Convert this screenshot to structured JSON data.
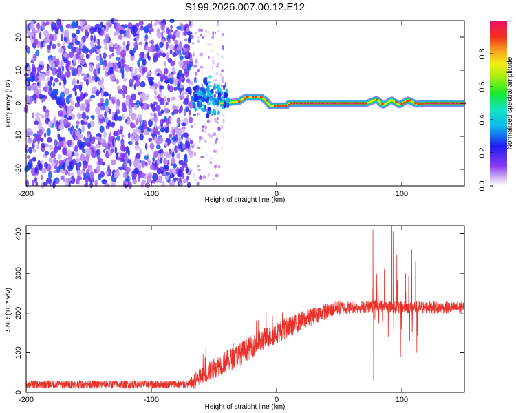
{
  "title": "S199.2026.007.00.12.E12",
  "chart_data": [
    {
      "type": "heatmap",
      "name": "spectrogram",
      "title": "S199.2026.007.00.12.E12",
      "xlabel": "Height of straight line (km)",
      "ylabel": "Frequency (Hz)",
      "xlim": [
        -200,
        150
      ],
      "ylim": [
        -25,
        25
      ],
      "xticks": [
        -200,
        -100,
        0,
        100
      ],
      "yticks": [
        -20,
        -10,
        0,
        10,
        20
      ],
      "colorbar": {
        "label": "Normalized spectral amplitude",
        "range": [
          0.0,
          1.0
        ],
        "ticks": [
          0.0,
          0.2,
          0.4,
          0.6,
          0.8
        ],
        "tick_labels": [
          "0.0",
          "0.2",
          "0.4",
          "0.6",
          "0.8"
        ]
      },
      "regions": [
        {
          "x_range": [
            -200,
            -68
          ],
          "description": "dense broadband noise",
          "amplitude": [
            0.05,
            0.3
          ]
        },
        {
          "x_range": [
            -68,
            -42
          ],
          "description": "sparse noise",
          "amplitude": [
            0.02,
            0.15
          ]
        },
        {
          "x_range": [
            -66,
            -40
          ],
          "freq_hz": 2.5,
          "description": "scattered burst",
          "amplitude": [
            0.2,
            0.5
          ]
        }
      ],
      "ridge": [
        {
          "x": -45,
          "freq": 0.0
        },
        {
          "x": -30,
          "freq": 0.5
        },
        {
          "x": -25,
          "freq": 1.8
        },
        {
          "x": -12,
          "freq": 1.8
        },
        {
          "x": -8,
          "freq": 0.6
        },
        {
          "x": -5,
          "freq": -0.8
        },
        {
          "x": 8,
          "freq": -0.8
        },
        {
          "x": 10,
          "freq": 0.0
        },
        {
          "x": 72,
          "freq": 0.0
        },
        {
          "x": 80,
          "freq": 1.2
        },
        {
          "x": 85,
          "freq": -0.6
        },
        {
          "x": 92,
          "freq": 1.0
        },
        {
          "x": 98,
          "freq": -0.5
        },
        {
          "x": 105,
          "freq": 1.0
        },
        {
          "x": 112,
          "freq": -0.3
        },
        {
          "x": 118,
          "freq": 0.0
        },
        {
          "x": 150,
          "freq": 0.0
        }
      ]
    },
    {
      "type": "line",
      "name": "snr",
      "xlabel": "Height of straight line (km)",
      "ylabel": "SNR (10 * v/v)",
      "xlim": [
        -200,
        150
      ],
      "ylim": [
        0,
        420
      ],
      "xticks": [
        -200,
        -100,
        0,
        100
      ],
      "yticks": [
        0,
        100,
        200,
        300,
        400
      ],
      "series": [
        {
          "name": "SNR",
          "color": "#e8312a",
          "baseline": [
            [
              -200,
              20
            ],
            [
              -70,
              20
            ],
            [
              -60,
              40
            ],
            [
              -45,
              70
            ],
            [
              -30,
              95
            ],
            [
              -10,
              135
            ],
            [
              10,
              165
            ],
            [
              20,
              180
            ],
            [
              35,
              200
            ],
            [
              50,
              213
            ],
            [
              80,
              218
            ],
            [
              100,
              215
            ],
            [
              150,
              213
            ]
          ],
          "noise": [
            [
              -200,
              10
            ],
            [
              -70,
              10
            ],
            [
              -65,
              22
            ],
            [
              -40,
              28
            ],
            [
              0,
              28
            ],
            [
              30,
              22
            ],
            [
              60,
              15
            ],
            [
              150,
              15
            ]
          ],
          "spikes": [
            {
              "x": 77,
              "value": 410
            },
            {
              "x": 77.5,
              "value": 30
            },
            {
              "x": 92,
              "value": 420
            },
            {
              "x": 93,
              "value": 405
            },
            {
              "x": 96,
              "value": 345
            },
            {
              "x": 99,
              "value": 90
            },
            {
              "x": 108,
              "value": 360
            },
            {
              "x": 109,
              "value": 95
            },
            {
              "x": 111,
              "value": 330
            },
            {
              "x": 112,
              "value": 100
            },
            {
              "x": 86,
              "value": 310
            },
            {
              "x": 103,
              "value": 300
            }
          ]
        }
      ]
    }
  ]
}
